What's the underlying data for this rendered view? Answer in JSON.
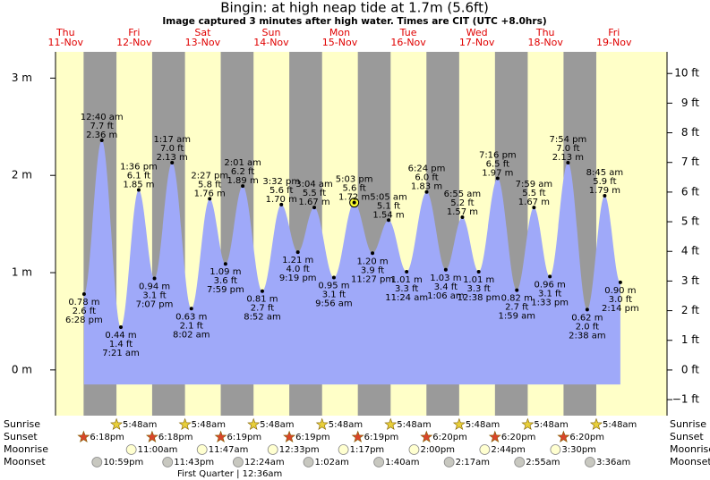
{
  "chart_data": {
    "type": "area",
    "title": "Bingin: at high  neap tide at 1.7m (5.6ft)",
    "subtitle": "Image captured 3 minutes after high water. Times are CIT (UTC +8.0hrs)",
    "ylim": [
      -0.47,
      3.27
    ],
    "yticks": [
      {
        "value": 0,
        "label": "0 m"
      },
      {
        "value": 1,
        "label": "1 m"
      },
      {
        "value": 2,
        "label": "2 m"
      },
      {
        "value": 3,
        "label": "3 m"
      }
    ],
    "y2lim": [
      -1.54,
      10.73
    ],
    "y2ticks": [
      {
        "value": -1,
        "label": "−1 ft"
      },
      {
        "value": 0,
        "label": "0 ft"
      },
      {
        "value": 1,
        "label": "1 ft"
      },
      {
        "value": 2,
        "label": "2 ft"
      },
      {
        "value": 3,
        "label": "3 ft"
      },
      {
        "value": 4,
        "label": "4 ft"
      },
      {
        "value": 5,
        "label": "5 ft"
      },
      {
        "value": 6,
        "label": "6 ft"
      },
      {
        "value": 7,
        "label": "7 ft"
      },
      {
        "value": 8,
        "label": "8 ft"
      },
      {
        "value": 9,
        "label": "9 ft"
      },
      {
        "value": 10,
        "label": "10 ft"
      }
    ],
    "color": "#9fa9f9",
    "row_labels": {
      "sunrise": "Sunrise",
      "sunset": "Sunset",
      "moonrise": "Moonrise",
      "moonset": "Moonset"
    },
    "days": [
      {
        "day": "Thu",
        "date": "11-Nov",
        "tides": [
          {
            "time": "6:28 pm",
            "m": 0.78,
            "m_label": "0.78 m",
            "ft_label": "2.6 ft"
          }
        ],
        "sunset": "6:18pm",
        "moonset": "10:59pm"
      },
      {
        "day": "Fri",
        "date": "12-Nov",
        "tides": [
          {
            "time": "12:40 am",
            "m": 2.36,
            "m_label": "2.36 m",
            "ft_label": "7.7 ft"
          },
          {
            "time": "7:21 am",
            "m": 0.44,
            "m_label": "0.44 m",
            "ft_label": "1.4 ft"
          },
          {
            "time": "1:36 pm",
            "m": 1.85,
            "m_label": "1.85 m",
            "ft_label": "6.1 ft"
          },
          {
            "time": "7:07 pm",
            "m": 0.94,
            "m_label": "0.94 m",
            "ft_label": "3.1 ft"
          }
        ],
        "sunrise": "5:48am",
        "sunset": "6:18pm",
        "moonrise": "11:00am",
        "moonset": "11:43pm"
      },
      {
        "day": "Sat",
        "date": "13-Nov",
        "tides": [
          {
            "time": "1:17 am",
            "m": 2.13,
            "m_label": "2.13 m",
            "ft_label": "7.0 ft"
          },
          {
            "time": "8:02 am",
            "m": 0.63,
            "m_label": "0.63 m",
            "ft_label": "2.1 ft"
          },
          {
            "time": "2:27 pm",
            "m": 1.76,
            "m_label": "1.76 m",
            "ft_label": "5.8 ft"
          },
          {
            "time": "7:59 pm",
            "m": 1.09,
            "m_label": "1.09 m",
            "ft_label": "3.6 ft"
          }
        ],
        "sunrise": "5:48am",
        "sunset": "6:19pm",
        "moonrise": "11:47am"
      },
      {
        "day": "Sun",
        "date": "14-Nov",
        "tides": [
          {
            "time": "2:01 am",
            "m": 1.89,
            "m_label": "1.89 m",
            "ft_label": "6.2 ft"
          },
          {
            "time": "8:52 am",
            "m": 0.81,
            "m_label": "0.81 m",
            "ft_label": "2.7 ft"
          },
          {
            "time": "3:32 pm",
            "m": 1.7,
            "m_label": "1.70 m",
            "ft_label": "5.6 ft"
          },
          {
            "time": "9:19 pm",
            "m": 1.21,
            "m_label": "1.21 m",
            "ft_label": "4.0 ft"
          }
        ],
        "sunrise": "5:48am",
        "sunset": "6:19pm",
        "moonrise": "12:33pm",
        "moonset": "12:24am",
        "moon_phase": "First Quarter | 12:36am"
      },
      {
        "day": "Mon",
        "date": "15-Nov",
        "tides": [
          {
            "time": "3:04 am",
            "m": 1.67,
            "m_label": "1.67 m",
            "ft_label": "5.5 ft"
          },
          {
            "time": "9:56 am",
            "m": 0.95,
            "m_label": "0.95 m",
            "ft_label": "3.1 ft"
          },
          {
            "time": "5:03 pm",
            "m": 1.72,
            "m_label": "1.72 m",
            "ft_label": "5.6 ft",
            "current": true
          },
          {
            "time": "11:27 pm",
            "m": 1.2,
            "m_label": "1.20 m",
            "ft_label": "3.9 ft"
          }
        ],
        "sunrise": "5:48am",
        "sunset": "6:19pm",
        "moonrise": "1:17pm",
        "moonset": "1:02am"
      },
      {
        "day": "Tue",
        "date": "16-Nov",
        "tides": [
          {
            "time": "5:05 am",
            "m": 1.54,
            "m_label": "1.54 m",
            "ft_label": "5.1 ft"
          },
          {
            "time": "11:24 am",
            "m": 1.01,
            "m_label": "1.01 m",
            "ft_label": "3.3 ft"
          },
          {
            "time": "6:24 pm",
            "m": 1.83,
            "m_label": "1.83 m",
            "ft_label": "6.0 ft"
          }
        ],
        "sunrise": "5:48am",
        "sunset": "6:20pm",
        "moonrise": "2:00pm",
        "moonset": "1:40am"
      },
      {
        "day": "Wed",
        "date": "17-Nov",
        "tides": [
          {
            "time": "1:06 am",
            "m": 1.03,
            "m_label": "1.03 m",
            "ft_label": "3.4 ft"
          },
          {
            "time": "6:55 am",
            "m": 1.57,
            "m_label": "1.57 m",
            "ft_label": "5.2 ft"
          },
          {
            "time": "12:38 pm",
            "m": 1.01,
            "m_label": "1.01 m",
            "ft_label": "3.3 ft"
          },
          {
            "time": "7:16 pm",
            "m": 1.97,
            "m_label": "1.97 m",
            "ft_label": "6.5 ft"
          }
        ],
        "sunrise": "5:48am",
        "sunset": "6:20pm",
        "moonrise": "2:44pm",
        "moonset": "2:17am"
      },
      {
        "day": "Thu",
        "date": "18-Nov",
        "tides": [
          {
            "time": "1:59 am",
            "m": 0.82,
            "m_label": "0.82 m",
            "ft_label": "2.7 ft"
          },
          {
            "time": "7:59 am",
            "m": 1.67,
            "m_label": "1.67 m",
            "ft_label": "5.5 ft"
          },
          {
            "time": "1:33 pm",
            "m": 0.96,
            "m_label": "0.96 m",
            "ft_label": "3.1 ft"
          },
          {
            "time": "7:54 pm",
            "m": 2.13,
            "m_label": "2.13 m",
            "ft_label": "7.0 ft"
          }
        ],
        "sunrise": "5:48am",
        "sunset": "6:20pm",
        "moonrise": "3:30pm",
        "moonset": "2:55am"
      },
      {
        "day": "Fri",
        "date": "19-Nov",
        "tides": [
          {
            "time": "2:38 am",
            "m": 0.62,
            "m_label": "0.62 m",
            "ft_label": "2.0 ft"
          },
          {
            "time": "8:45 am",
            "m": 1.79,
            "m_label": "1.79 m",
            "ft_label": "5.9 ft"
          },
          {
            "time": "2:14 pm",
            "m": 0.9,
            "m_label": "0.90 m",
            "ft_label": "3.0 ft"
          }
        ],
        "sunrise": "5:48am",
        "moonset": "3:36am"
      }
    ]
  }
}
